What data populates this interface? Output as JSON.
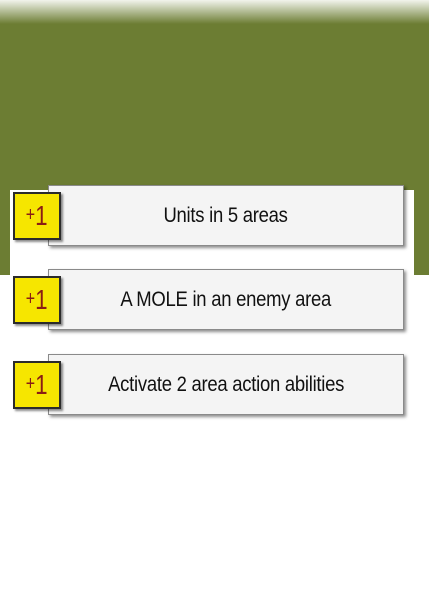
{
  "colors": {
    "header_band": "#6c7d33",
    "badge_fill": "#f6e600",
    "badge_text": "#8a1d14",
    "card_fill": "#f4f4f4"
  },
  "objectives": [
    {
      "plus": "+",
      "points": "1",
      "text": "Units in 5 areas"
    },
    {
      "plus": "+",
      "points": "1",
      "text": "A MOLE in an enemy area"
    },
    {
      "plus": "+",
      "points": "1",
      "text": "Activate 2 area action abilities"
    }
  ]
}
